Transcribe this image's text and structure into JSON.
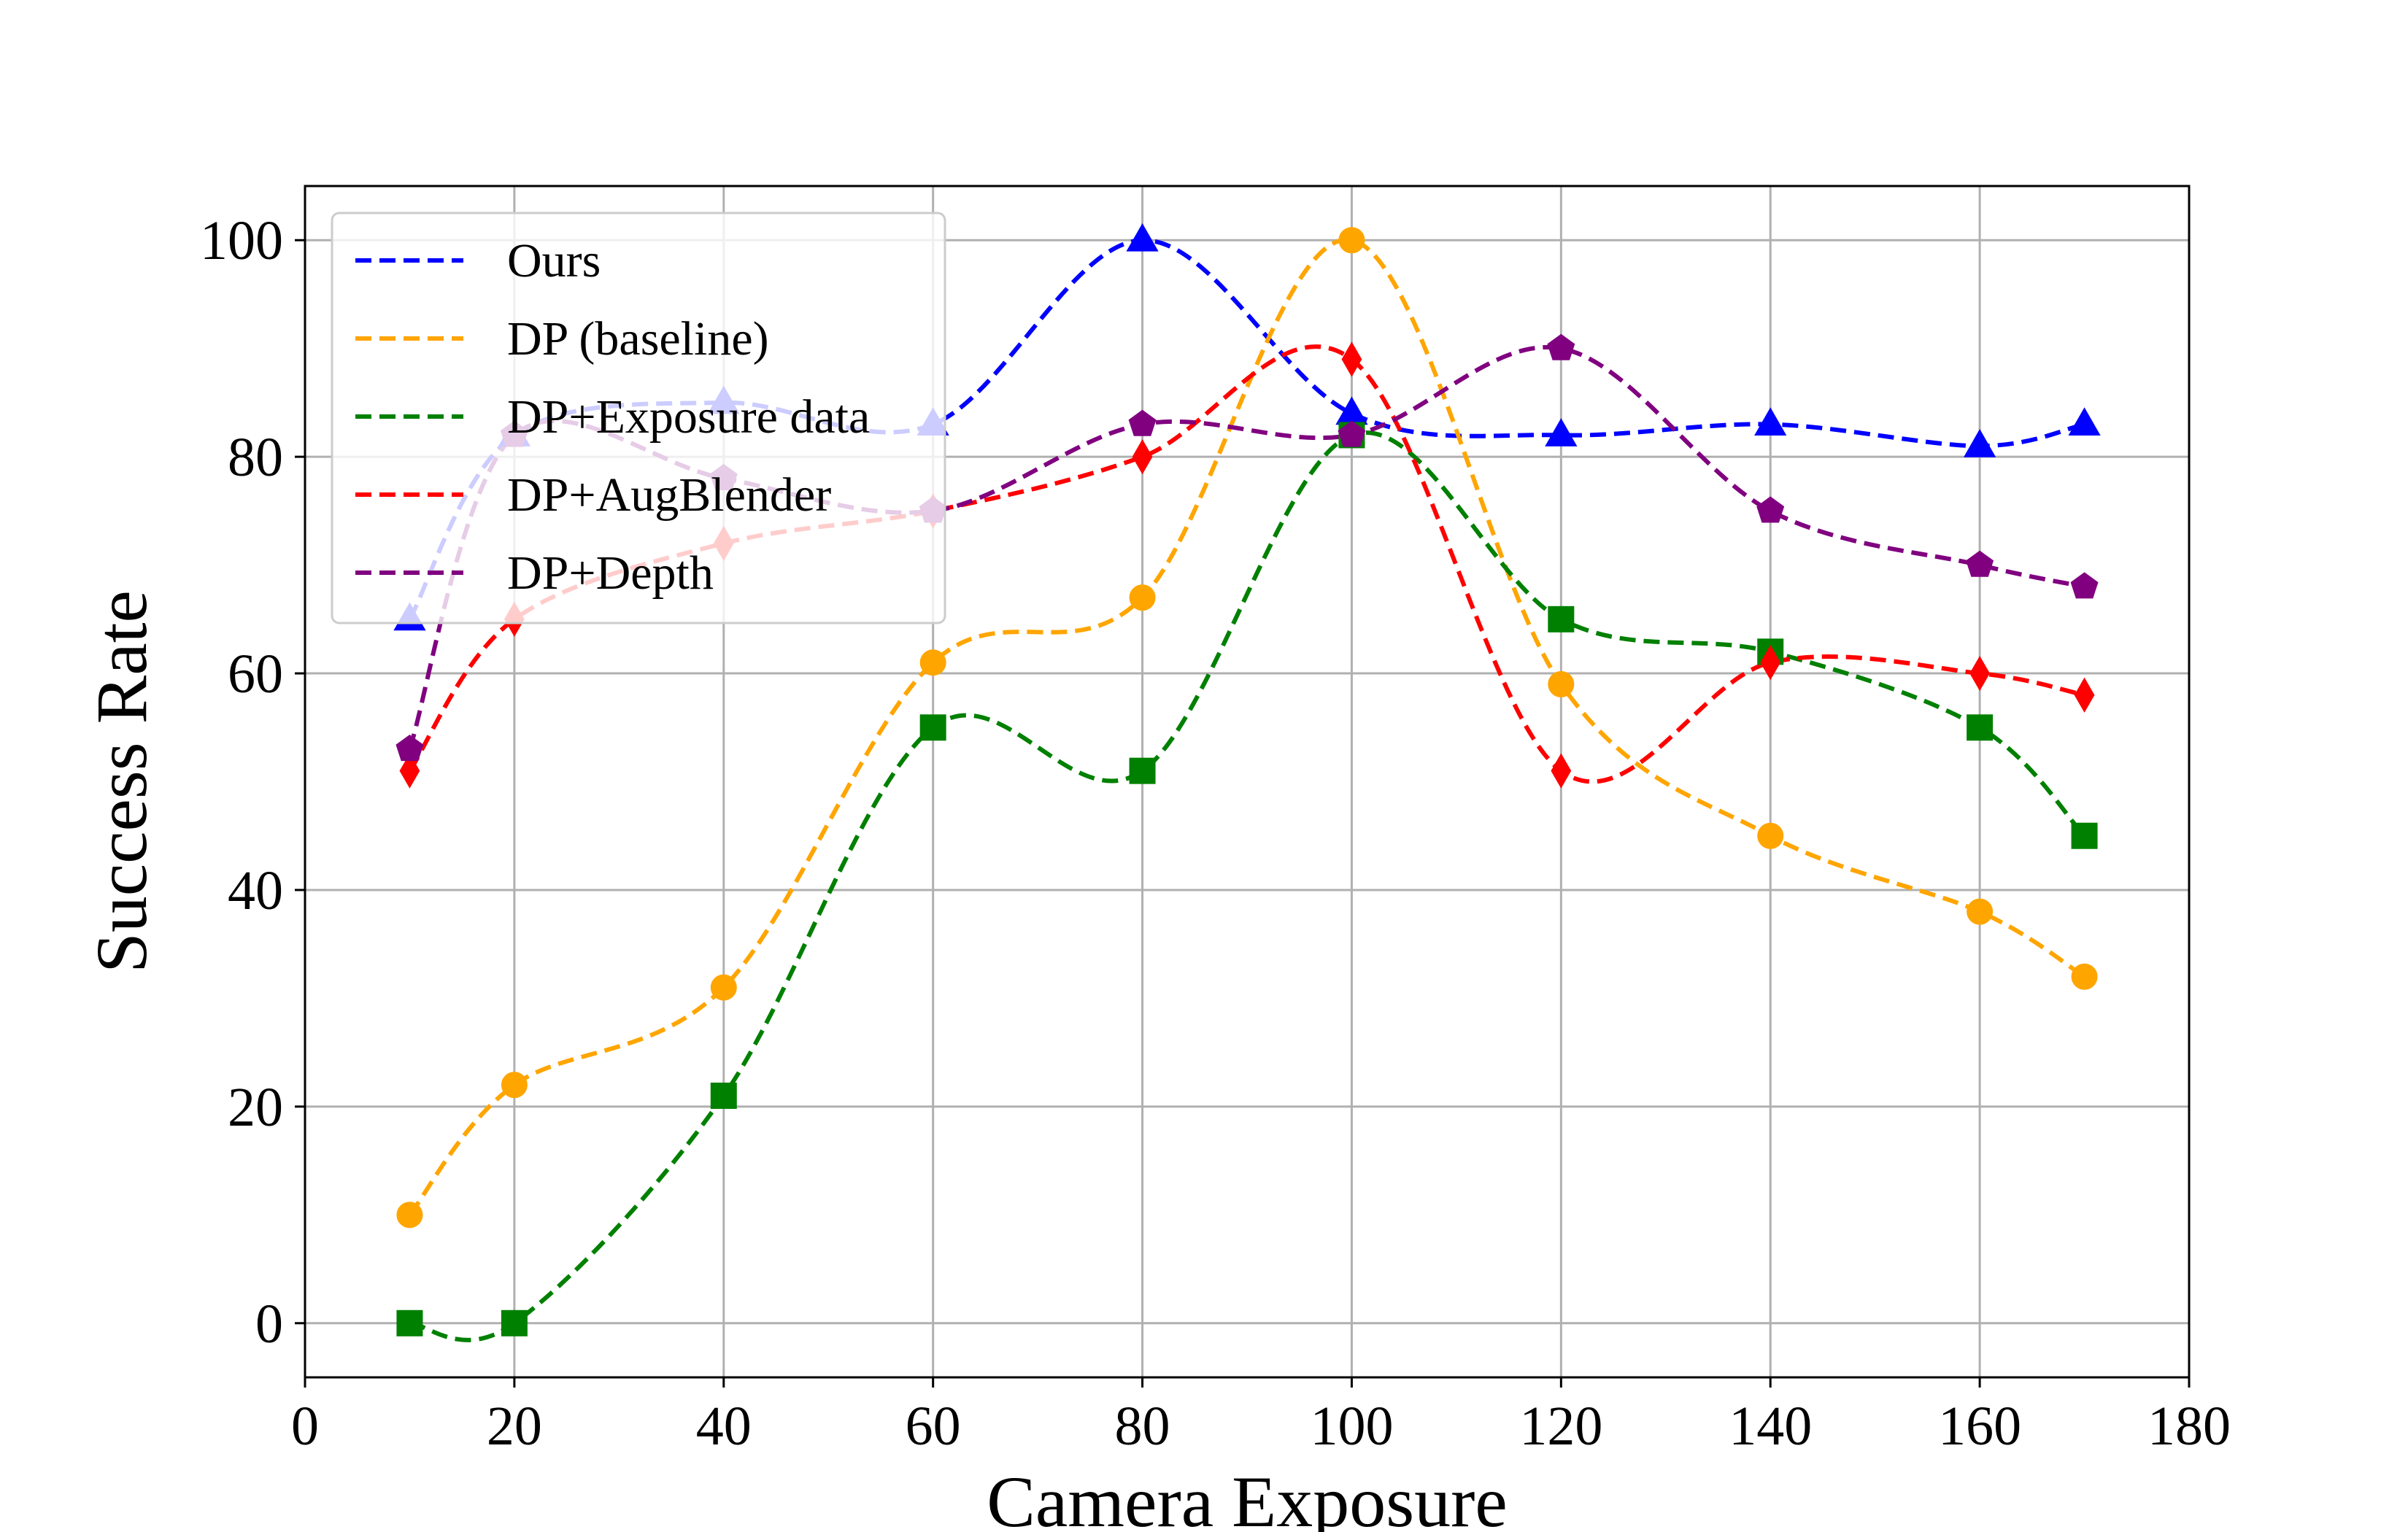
{
  "chart_data": {
    "type": "line",
    "title": "",
    "xlabel": "Camera Exposure",
    "ylabel": "Success Rate",
    "xlim": [
      0,
      180
    ],
    "ylim": [
      -5,
      105
    ],
    "xticks": [
      0,
      20,
      40,
      60,
      80,
      100,
      120,
      140,
      160,
      180
    ],
    "yticks": [
      0,
      20,
      40,
      60,
      80,
      100
    ],
    "x": [
      10,
      20,
      40,
      60,
      80,
      100,
      120,
      140,
      160,
      170
    ],
    "grid": true,
    "legend_location": "top-left",
    "series": [
      {
        "name": "Ours",
        "color": "#0000ff",
        "marker": "triangle",
        "values": [
          65,
          82,
          85,
          83,
          100,
          84,
          82,
          83,
          81,
          83
        ]
      },
      {
        "name": "DP (baseline)",
        "color": "#ffa500",
        "marker": "circle",
        "values": [
          10,
          22,
          31,
          61,
          67,
          100,
          59,
          45,
          38,
          32
        ]
      },
      {
        "name": "DP+Exposure data",
        "color": "#008000",
        "marker": "square",
        "values": [
          0,
          0,
          21,
          55,
          51,
          82,
          65,
          62,
          55,
          45
        ]
      },
      {
        "name": "DP+AugBlender",
        "color": "#ff0000",
        "marker": "diamond",
        "values": [
          51,
          65,
          72,
          75,
          80,
          89,
          51,
          61,
          60,
          58
        ]
      },
      {
        "name": "DP+Depth",
        "color": "#800080",
        "marker": "pentagon",
        "values": [
          53,
          82,
          78,
          75,
          83,
          82,
          90,
          75,
          70,
          68
        ]
      }
    ]
  }
}
